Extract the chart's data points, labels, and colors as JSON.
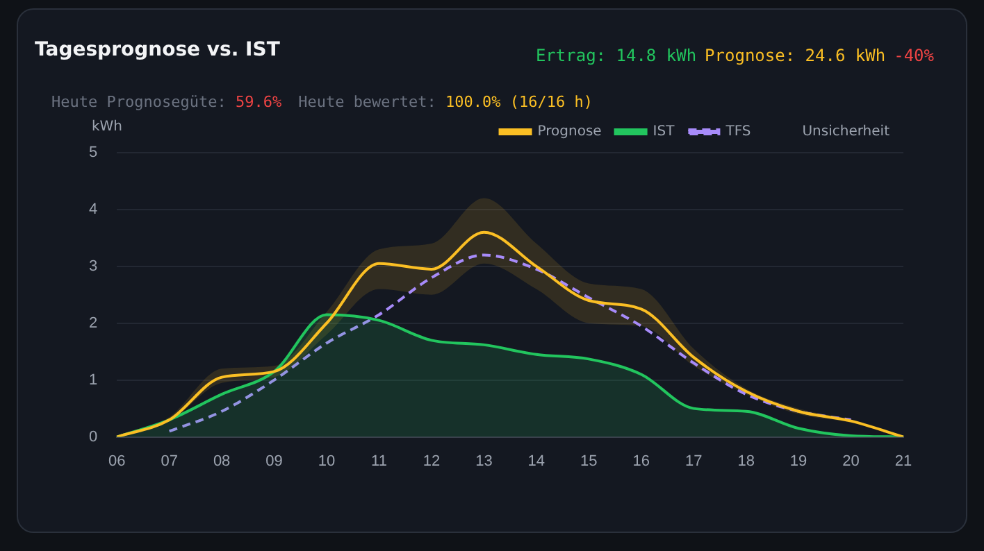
{
  "chart_data": {
    "type": "line",
    "title": "Tagesprognose vs. IST",
    "ylabel": "kWh",
    "annotations": [
      "Ertrag: 14.8 kWh",
      "Prognose: 24.6 kWh",
      "-40%",
      "Heute Prognosegüte: ",
      "59.6%",
      "Heute bewertet: ",
      "100.0% (16/16 h)"
    ],
    "categories": [
      "06",
      "07",
      "08",
      "09",
      "10",
      "11",
      "12",
      "13",
      "14",
      "15",
      "16",
      "17",
      "18",
      "19",
      "20",
      "21"
    ],
    "series": [
      {
        "name": "Prognose",
        "type": "line",
        "color": "#fbbf24",
        "values": [
          0,
          0.3,
          1.05,
          1.15,
          2.0,
          3.05,
          2.95,
          3.6,
          3.0,
          2.4,
          2.25,
          1.4,
          0.8,
          0.45,
          0.28,
          0
        ],
        "lower": [
          0,
          0.28,
          0.95,
          1.05,
          1.8,
          2.6,
          2.5,
          3.05,
          2.6,
          2.0,
          1.95,
          1.25,
          0.75,
          0.4,
          0.25,
          0
        ],
        "upper": [
          0,
          0.35,
          1.2,
          1.25,
          2.2,
          3.3,
          3.4,
          4.2,
          3.4,
          2.7,
          2.6,
          1.55,
          0.85,
          0.5,
          0.3,
          0
        ]
      },
      {
        "name": "IST",
        "type": "area",
        "color": "#22c55e",
        "values": [
          0,
          0.3,
          0.75,
          1.15,
          2.15,
          2.05,
          1.7,
          1.62,
          1.45,
          1.37,
          1.1,
          0.5,
          0.45,
          0.15,
          0.02,
          0
        ]
      },
      {
        "name": "TFS",
        "type": "line",
        "color": "#a78bfa",
        "line_style": "dashed",
        "values": [
          null,
          0.1,
          0.45,
          1.0,
          1.65,
          2.15,
          2.8,
          3.2,
          2.95,
          2.45,
          1.95,
          1.3,
          0.75,
          0.45,
          0.3,
          null
        ]
      }
    ],
    "legend_title": "Unsicherheit",
    "ylim": [
      0,
      5
    ],
    "yticks": [
      0,
      1,
      2,
      3,
      4,
      5
    ],
    "grid": "y",
    "legend": "top right",
    "marker": "none"
  }
}
